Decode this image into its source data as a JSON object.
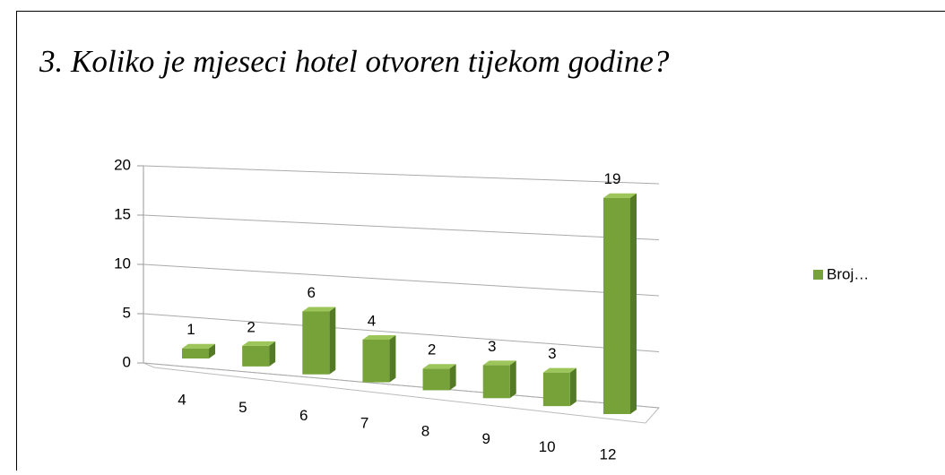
{
  "chart_data": {
    "type": "bar3d",
    "title": "3. Koliko je mjeseci hotel otvoren tijekom godine?",
    "categories": [
      "4",
      "5",
      "6",
      "7",
      "8",
      "9",
      "10",
      "12"
    ],
    "series": [
      {
        "name": "Broj…",
        "color": "#77a23a",
        "values": [
          1,
          2,
          6,
          4,
          2,
          3,
          3,
          19
        ]
      }
    ],
    "ylim": [
      0,
      20
    ],
    "yticks": [
      0,
      5,
      10,
      15,
      20
    ],
    "grid": true,
    "legend": "right"
  }
}
